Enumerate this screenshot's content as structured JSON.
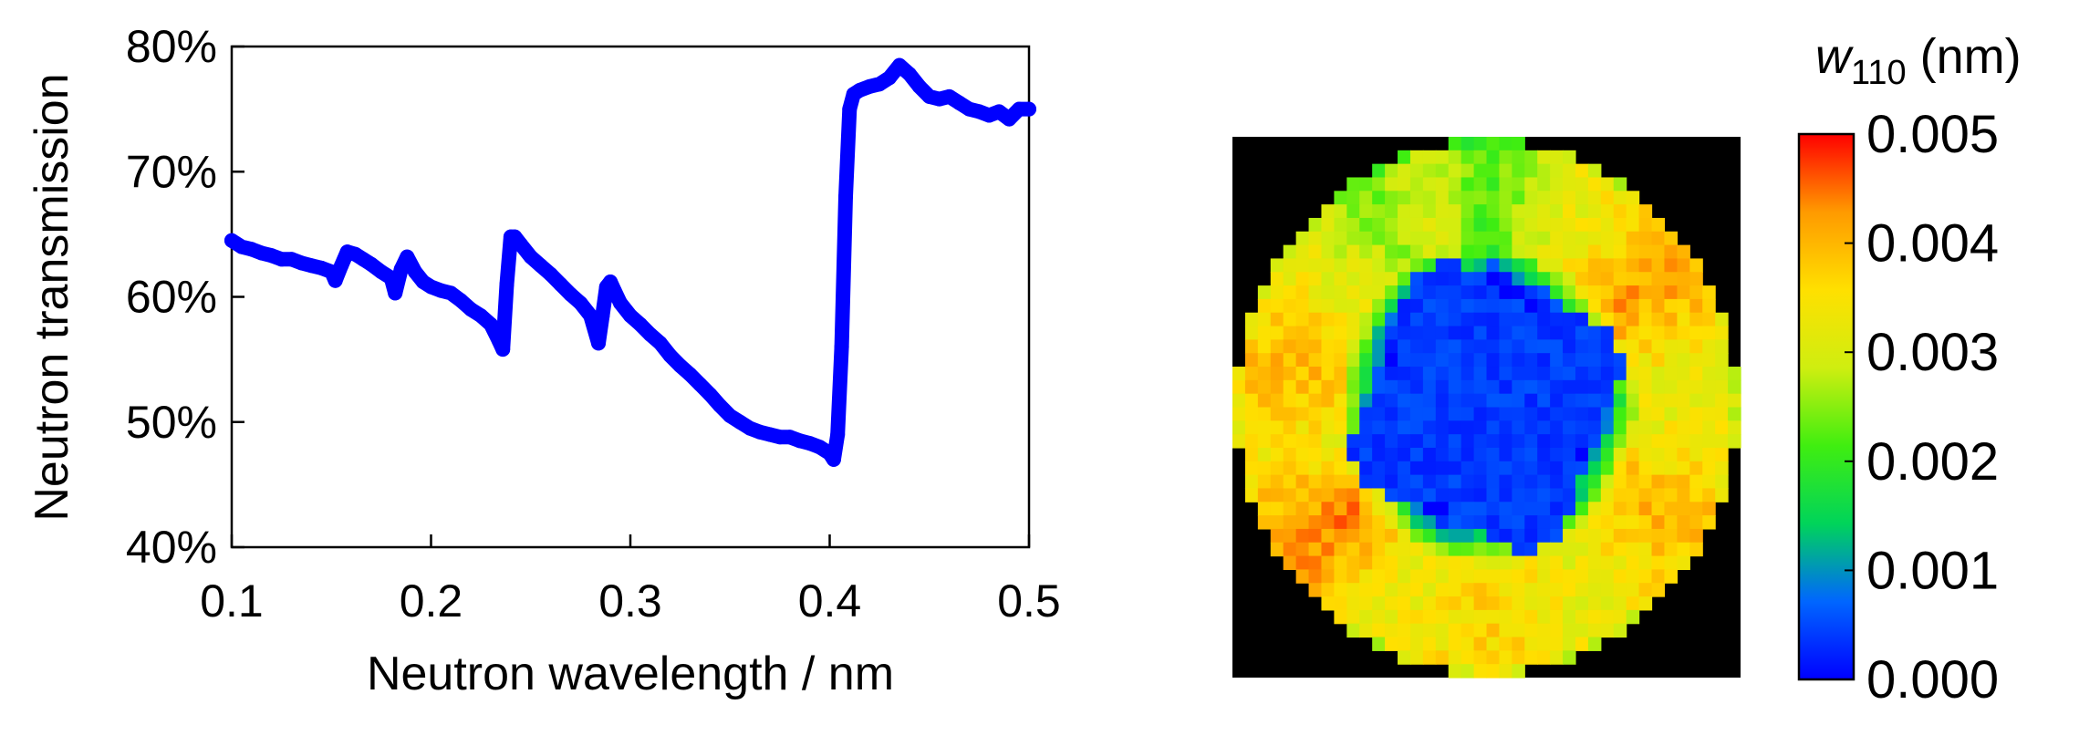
{
  "chart_data": [
    {
      "type": "line",
      "title": "",
      "xlabel": "Neutron wavelength / nm",
      "ylabel": "Neutron transmission",
      "xlim": [
        0.1,
        0.5
      ],
      "ylim": [
        40,
        80
      ],
      "xticks": [
        {
          "value": 0.1,
          "label": "0.1"
        },
        {
          "value": 0.2,
          "label": "0.2"
        },
        {
          "value": 0.3,
          "label": "0.3"
        },
        {
          "value": 0.4,
          "label": "0.4"
        },
        {
          "value": 0.5,
          "label": "0.5"
        }
      ],
      "yticks": [
        {
          "value": 40,
          "label": "40%"
        },
        {
          "value": 50,
          "label": "50%"
        },
        {
          "value": 60,
          "label": "60%"
        },
        {
          "value": 70,
          "label": "70%"
        },
        {
          "value": 80,
          "label": "80%"
        }
      ],
      "grid": false,
      "legend": "none",
      "series": [
        {
          "color": "#0000ff",
          "x": [
            0.1,
            0.105,
            0.11,
            0.115,
            0.12,
            0.125,
            0.13,
            0.135,
            0.14,
            0.145,
            0.15,
            0.152,
            0.155,
            0.158,
            0.162,
            0.166,
            0.17,
            0.175,
            0.18,
            0.182,
            0.185,
            0.188,
            0.192,
            0.196,
            0.2,
            0.205,
            0.21,
            0.215,
            0.22,
            0.225,
            0.23,
            0.234,
            0.236,
            0.238,
            0.24,
            0.242,
            0.245,
            0.25,
            0.255,
            0.26,
            0.265,
            0.27,
            0.275,
            0.28,
            0.284,
            0.286,
            0.288,
            0.29,
            0.292,
            0.295,
            0.3,
            0.305,
            0.31,
            0.315,
            0.32,
            0.325,
            0.33,
            0.335,
            0.34,
            0.345,
            0.35,
            0.355,
            0.36,
            0.365,
            0.37,
            0.375,
            0.38,
            0.385,
            0.39,
            0.395,
            0.4,
            0.402,
            0.404,
            0.406,
            0.408,
            0.41,
            0.412,
            0.415,
            0.42,
            0.425,
            0.43,
            0.435,
            0.44,
            0.445,
            0.45,
            0.455,
            0.46,
            0.465,
            0.47,
            0.475,
            0.48,
            0.485,
            0.49,
            0.495,
            0.5
          ],
          "y": [
            64.5,
            64.0,
            63.8,
            63.5,
            63.3,
            63.0,
            63.0,
            62.7,
            62.5,
            62.3,
            62.0,
            61.3,
            62.5,
            63.6,
            63.4,
            63.0,
            62.6,
            62.0,
            61.5,
            60.3,
            62.2,
            63.2,
            62.0,
            61.2,
            60.8,
            60.5,
            60.3,
            59.7,
            59.0,
            58.5,
            57.8,
            56.5,
            55.8,
            61.0,
            64.8,
            64.8,
            64.2,
            63.2,
            62.5,
            61.8,
            61.0,
            60.2,
            59.5,
            58.5,
            56.3,
            58.5,
            60.8,
            61.2,
            60.5,
            59.5,
            58.5,
            57.8,
            57.0,
            56.3,
            55.3,
            54.5,
            53.8,
            53.0,
            52.2,
            51.3,
            50.5,
            50.0,
            49.5,
            49.2,
            49.0,
            48.8,
            48.8,
            48.5,
            48.3,
            48.0,
            47.5,
            47.0,
            49.0,
            56.0,
            68.0,
            75.0,
            76.2,
            76.5,
            76.8,
            77.0,
            77.5,
            78.5,
            77.8,
            76.8,
            76.0,
            75.8,
            76.0,
            75.5,
            75.0,
            74.8,
            74.5,
            74.8,
            74.2,
            75.0,
            75.0
          ]
        }
      ]
    },
    {
      "type": "heatmap",
      "title": "",
      "colorbar": {
        "title_main": "w",
        "title_sub": "110",
        "title_unit": " (nm)",
        "min": 0.0,
        "max": 0.005,
        "ticks": [
          {
            "value": 0.0,
            "label": "0.000"
          },
          {
            "value": 0.001,
            "label": "0.001"
          },
          {
            "value": 0.002,
            "label": "0.002"
          },
          {
            "value": 0.003,
            "label": "0.003"
          },
          {
            "value": 0.004,
            "label": "0.004"
          },
          {
            "value": 0.005,
            "label": "0.005"
          }
        ],
        "colors": [
          "#0000ff",
          "#0066ff",
          "#00d45a",
          "#40ee10",
          "#cfee10",
          "#ffe000",
          "#ff9a00",
          "#ff0000"
        ]
      },
      "background": "#000000",
      "grid_size": 40,
      "field": {
        "description_of_pattern": "",
        "inner_disk_radius": 0.52,
        "outer_disk_radius": 1.0,
        "inner_value": 0.0004,
        "ring_value": 0.0032,
        "ring_hot_spots": [
          {
            "angle_deg": 35,
            "value": 0.0042
          },
          {
            "angle_deg": 170,
            "value": 0.004
          },
          {
            "angle_deg": 215,
            "value": 0.0044
          },
          {
            "angle_deg": 330,
            "value": 0.004
          },
          {
            "angle_deg": 270,
            "value": 0.0037
          }
        ],
        "ring_cool_spots": [
          {
            "angle_deg": 90,
            "value": 0.0022
          },
          {
            "angle_deg": 120,
            "value": 0.0025
          }
        ],
        "inner_warm_spot": {
          "cx": 0.0,
          "cy": -0.55,
          "value": 0.0028
        }
      }
    }
  ]
}
